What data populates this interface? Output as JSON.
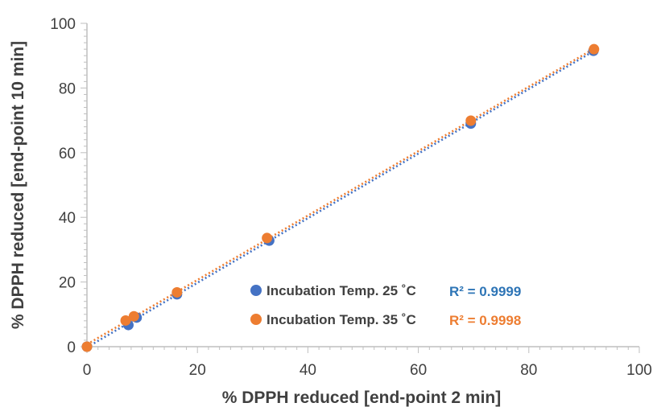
{
  "chart_data": {
    "type": "scatter",
    "xlabel": "% DPPH reduced [end-point  2 min]",
    "ylabel": "% DPPH reduced [end-point  10 min]",
    "xlim": [
      0,
      100
    ],
    "ylim": [
      0,
      100
    ],
    "x_ticks": [
      "0",
      "20",
      "40",
      "60",
      "80",
      "100"
    ],
    "y_ticks": [
      "0",
      "20",
      "40",
      "60",
      "80",
      "100"
    ],
    "grid": false,
    "legend_position": "bottom-center",
    "series": [
      {
        "name": "Incubation Temp. 25 ˚C",
        "color": "#4472C4",
        "r2_label": "R² = 0.9999",
        "r2_color": "#2E75B6",
        "trendline": "linear dotted",
        "x": [
          0,
          7.5,
          9,
          16.3,
          33,
          69.5,
          91.7
        ],
        "y": [
          0,
          6.7,
          9,
          16.2,
          32.8,
          69,
          91.5
        ]
      },
      {
        "name": "Incubation Temp. 35 ˚C",
        "color": "#ED7D31",
        "r2_label": "R² = 0.9998",
        "r2_color": "#ED7D31",
        "trendline": "linear dotted",
        "x": [
          0,
          7,
          8.5,
          16.3,
          32.6,
          69.5,
          91.8
        ],
        "y": [
          0,
          8.1,
          9.4,
          16.8,
          33.6,
          69.9,
          92
        ]
      }
    ]
  }
}
